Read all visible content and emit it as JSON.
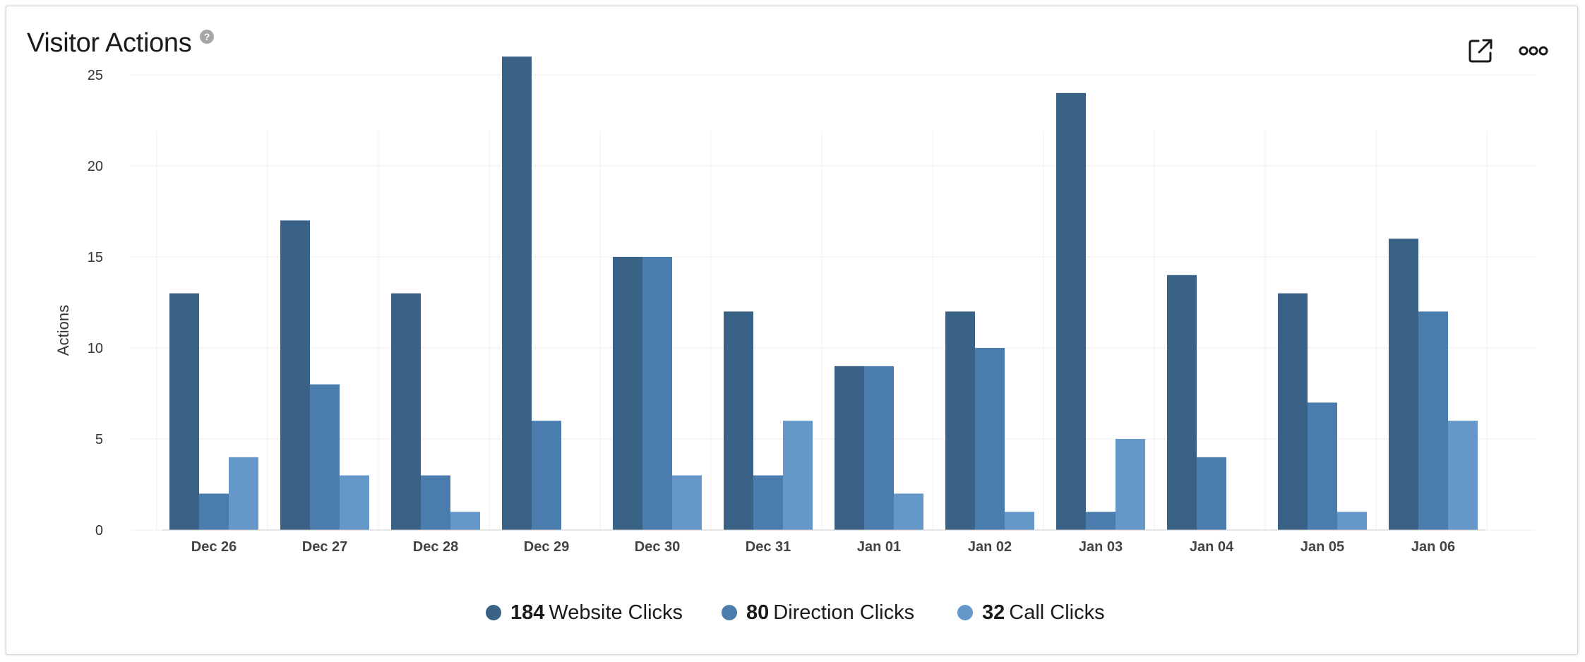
{
  "header": {
    "title": "Visitor Actions",
    "help_icon_glyph": "?",
    "help_icon": "question-circle-icon",
    "open_icon": "external-link-icon",
    "more_icon": "more-horizontal-icon"
  },
  "legend": [
    {
      "count": "184",
      "label": "Website Clicks"
    },
    {
      "count": "80",
      "label": "Direction Clicks"
    },
    {
      "count": "32",
      "label": "Call Clicks"
    }
  ],
  "chart_data": {
    "type": "bar",
    "title": "Visitor Actions",
    "xlabel": "",
    "ylabel": "Actions",
    "categories": [
      "Dec 26",
      "Dec 27",
      "Dec 28",
      "Dec 29",
      "Dec 30",
      "Dec 31",
      "Jan 01",
      "Jan 02",
      "Jan 03",
      "Jan 04",
      "Jan 05",
      "Jan 06"
    ],
    "series": [
      {
        "name": "Website Clicks",
        "color": "#3a6186",
        "values": [
          13,
          17,
          13,
          26,
          15,
          12,
          9,
          12,
          24,
          14,
          13,
          16
        ]
      },
      {
        "name": "Direction Clicks",
        "color": "#4a7dae",
        "values": [
          2,
          8,
          3,
          6,
          15,
          3,
          9,
          10,
          1,
          4,
          7,
          12
        ]
      },
      {
        "name": "Call Clicks",
        "color": "#6598c8",
        "values": [
          4,
          3,
          1,
          0,
          3,
          6,
          2,
          1,
          5,
          0,
          1,
          6
        ]
      }
    ],
    "yticks": [
      "0",
      "5",
      "10",
      "15",
      "20",
      "25"
    ],
    "ylim": [
      0,
      27
    ],
    "grid": true,
    "legend_position": "bottom"
  }
}
